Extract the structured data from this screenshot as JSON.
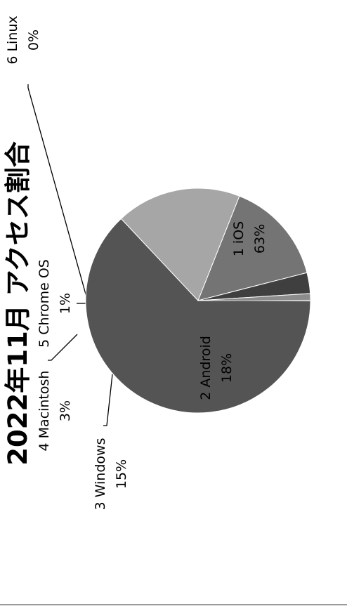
{
  "chart_data": {
    "type": "pie",
    "title": "2022年11月 アクセス割合",
    "orientation": "rotated 90° counter-clockwise",
    "slices": [
      {
        "label": "1 iOS",
        "value": 63,
        "value_label": "63%",
        "color": "#545454",
        "label_placement": "inside"
      },
      {
        "label": "2 Android",
        "value": 18,
        "value_label": "18%",
        "color": "#a6a6a6",
        "label_placement": "inside"
      },
      {
        "label": "3 Windows",
        "value": 15,
        "value_label": "15%",
        "color": "#747474",
        "label_placement": "outside"
      },
      {
        "label": "4 Macintosh",
        "value": 3,
        "value_label": "3%",
        "color": "#3f3f3f",
        "label_placement": "outside"
      },
      {
        "label": "5 Chrome OS",
        "value": 1,
        "value_label": "1%",
        "color": "#8c8c8c",
        "label_placement": "outside"
      },
      {
        "label": "6 Linux",
        "value": 0,
        "value_label": "0%",
        "color": "#cfcfcf",
        "label_placement": "outside"
      }
    ]
  }
}
